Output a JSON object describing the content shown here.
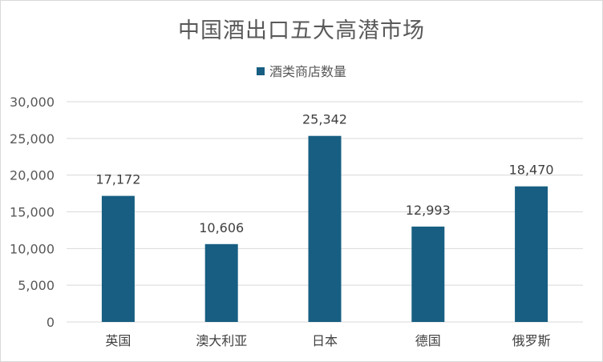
{
  "chart_data": {
    "type": "bar",
    "title": "中国酒出口五大高潜市场",
    "categories": [
      "英国",
      "澳大利亚",
      "日本",
      "德国",
      "俄罗斯"
    ],
    "series": [
      {
        "name": "酒类商店数量",
        "values": [
          17172,
          10606,
          25342,
          12993,
          18470
        ],
        "color": "#175e82"
      }
    ],
    "data_labels": [
      "17,172",
      "10,606",
      "25,342",
      "12,993",
      "18,470"
    ],
    "y_ticks": [
      "0",
      "5,000",
      "10,000",
      "15,000",
      "20,000",
      "25,000",
      "30,000"
    ],
    "ylim": [
      0,
      30000
    ],
    "grid": true,
    "legend_position": "top"
  },
  "colors": {
    "bar": "#175e82",
    "gridline": "#d9d9d9",
    "text": "#595959"
  }
}
